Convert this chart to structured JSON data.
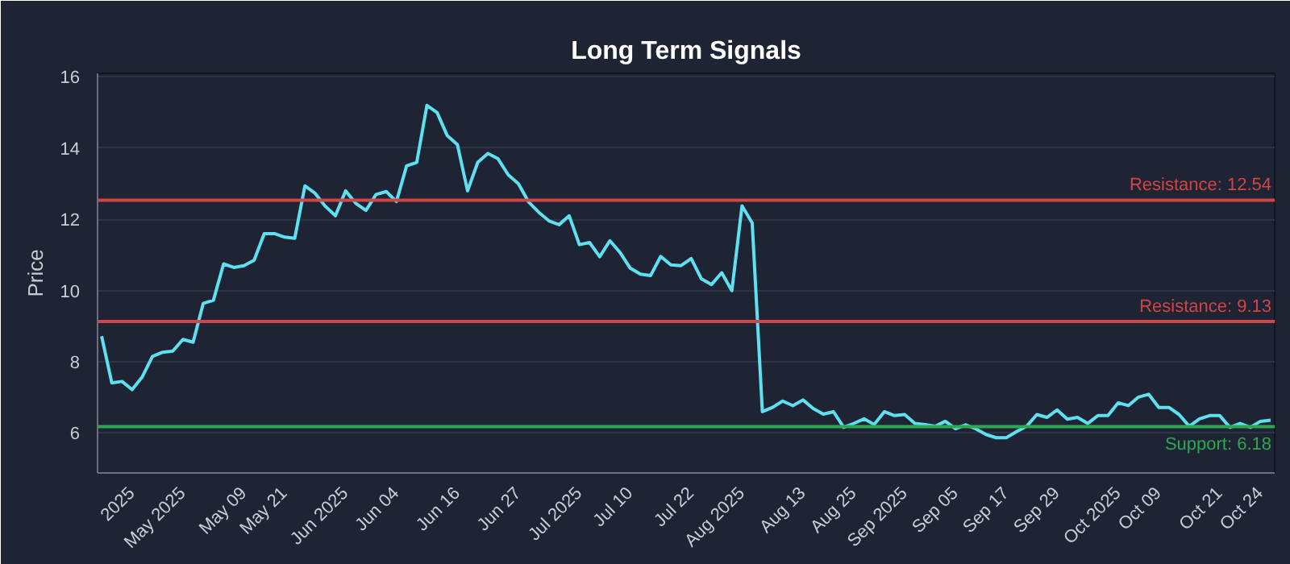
{
  "chart_data": {
    "type": "line",
    "title": "Long Term Signals",
    "ylabel": "Price",
    "categories": [
      null,
      null,
      null,
      "2025",
      null,
      null,
      null,
      null,
      "May 2025",
      null,
      null,
      null,
      null,
      null,
      "May 09",
      null,
      null,
      null,
      "May 21",
      null,
      null,
      null,
      null,
      null,
      "Jun 2025",
      null,
      null,
      null,
      null,
      "Jun 04",
      null,
      null,
      null,
      null,
      null,
      "Jun 16",
      null,
      null,
      null,
      null,
      null,
      "Jun 27",
      null,
      null,
      null,
      null,
      null,
      "Jul 2025",
      null,
      null,
      null,
      null,
      "Jul 10",
      null,
      null,
      null,
      null,
      null,
      "Jul 22",
      null,
      null,
      null,
      null,
      "Aug 2025",
      null,
      null,
      null,
      null,
      null,
      "Aug 13",
      null,
      null,
      null,
      null,
      "Aug 25",
      null,
      null,
      null,
      null,
      "Sep 2025",
      null,
      null,
      null,
      null,
      "Sep 05",
      null,
      null,
      null,
      null,
      "Sep 17",
      null,
      null,
      null,
      null,
      "Sep 29",
      null,
      null,
      null,
      null,
      null,
      "Oct 2025",
      null,
      null,
      null,
      "Oct 09",
      null,
      null,
      null,
      null,
      null,
      "Oct 21",
      null,
      null,
      null,
      "Oct 24",
      null
    ],
    "series": [
      {
        "color": "#5ee0f0",
        "values": [
          8.72,
          7.41,
          7.45,
          7.22,
          7.58,
          8.15,
          8.27,
          8.3,
          8.63,
          8.55,
          9.64,
          9.73,
          10.75,
          10.65,
          10.7,
          10.85,
          11.6,
          11.6,
          11.5,
          11.47,
          12.94,
          12.73,
          12.37,
          12.1,
          12.8,
          12.45,
          12.25,
          12.7,
          12.78,
          12.5,
          13.5,
          13.6,
          15.2,
          15.0,
          14.35,
          14.1,
          12.8,
          13.6,
          13.85,
          13.7,
          13.25,
          13.0,
          12.49,
          12.2,
          11.96,
          11.85,
          12.1,
          11.29,
          11.35,
          10.95,
          11.4,
          11.07,
          10.63,
          10.46,
          10.42,
          10.96,
          10.72,
          10.7,
          10.9,
          10.33,
          10.17,
          10.5,
          10.0,
          12.38,
          11.9,
          6.6,
          6.72,
          6.9,
          6.77,
          6.93,
          6.69,
          6.53,
          6.6,
          6.16,
          6.27,
          6.4,
          6.24,
          6.6,
          6.49,
          6.52,
          6.27,
          6.24,
          6.19,
          6.33,
          6.12,
          6.23,
          6.12,
          5.96,
          5.87,
          5.87,
          6.04,
          6.19,
          6.52,
          6.44,
          6.65,
          6.39,
          6.44,
          6.27,
          6.49,
          6.49,
          6.85,
          6.77,
          7.01,
          7.09,
          6.72,
          6.72,
          6.52,
          6.19,
          6.4,
          6.49,
          6.49,
          6.16,
          6.27,
          6.16,
          6.33,
          6.36
        ]
      }
    ],
    "ylim": [
      4.88,
      16.1
    ],
    "yticks": [
      6,
      8,
      10,
      12,
      14,
      16
    ],
    "grid": "y",
    "marker": "none",
    "line_style": "solid",
    "ref_lines": [
      {
        "axis": "y",
        "value": 12.54,
        "label": "Resistance: 12.54",
        "color": "#d04545"
      },
      {
        "axis": "y",
        "value": 9.13,
        "label": "Resistance: 9.13",
        "color": "#d04545"
      },
      {
        "axis": "y",
        "value": 6.18,
        "label": "Support: 6.18",
        "color": "#2ea84f"
      }
    ]
  }
}
